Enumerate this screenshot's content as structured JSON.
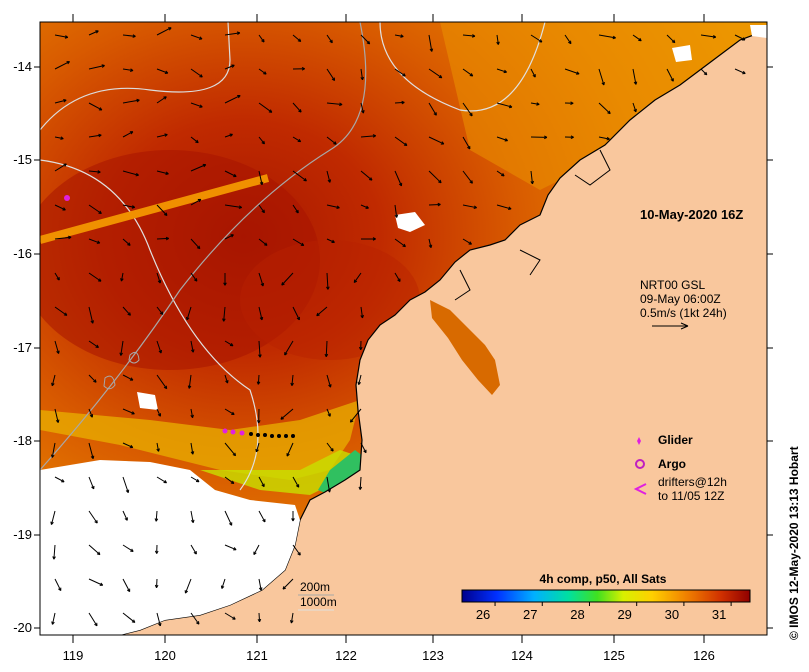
{
  "map": {
    "timestamp": "10-May-2020 16Z",
    "lon_ticks": [
      "119",
      "120",
      "121",
      "122",
      "123",
      "124",
      "125",
      "126"
    ],
    "lat_ticks": [
      "-14",
      "-15",
      "-16",
      "-17",
      "-18",
      "-19",
      "-20"
    ],
    "extent": {
      "lon": [
        118.6,
        126.7
      ],
      "lat": [
        -20.1,
        -13.5
      ]
    }
  },
  "current_info": {
    "source": "NRT00 GSL",
    "time": "09-May 06:00Z",
    "scale": "0.5m/s (1kt 24h)"
  },
  "legend": {
    "glider_label": "Glider",
    "argo_label": "Argo",
    "drifters_line1": "drifters@12h",
    "drifters_line2": "to 11/05 12Z",
    "glider_color": "#e020e0",
    "argo_color": "#c020c0",
    "drifter_color": "#e020e0"
  },
  "bathymetry": {
    "contour_200": "200m",
    "contour_1000": "1000m"
  },
  "colorbar": {
    "title": "4h comp, p50, All Sats",
    "ticks": [
      "26",
      "27",
      "28",
      "29",
      "30",
      "31"
    ],
    "range": [
      25.3,
      31.4
    ]
  },
  "credit": "© IMOS 12-May-2020 13:13 Hobart",
  "colors": {
    "land": "#f9c79d",
    "warm": "#b22000",
    "mid": "#dd6a00",
    "cool": "#f0a400"
  }
}
